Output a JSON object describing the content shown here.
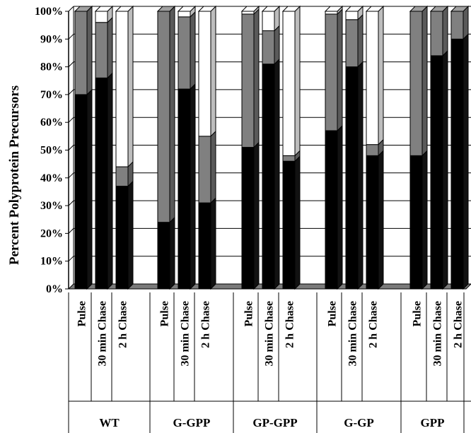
{
  "chart_data": {
    "type": "bar",
    "stacked": true,
    "three_d": true,
    "ylabel": "Percent Polyprotein Precursors",
    "xlabel": "",
    "ylim": [
      0,
      100
    ],
    "y_ticks": [
      "0%",
      "10%",
      "20%",
      "30%",
      "40%",
      "50%",
      "60%",
      "70%",
      "80%",
      "90%",
      "100%"
    ],
    "grid": true,
    "groups": [
      "WT",
      "G-GPP",
      "GP-GPP",
      "G-GP",
      "GPP"
    ],
    "categories": [
      "Pulse",
      "30 min Chase",
      "2 h Chase"
    ],
    "bars": [
      {
        "group": "WT",
        "category": "Pulse",
        "segments": [
          70,
          30,
          0
        ]
      },
      {
        "group": "WT",
        "category": "30 min Chase",
        "segments": [
          76,
          20,
          4
        ]
      },
      {
        "group": "WT",
        "category": "2 h Chase",
        "segments": [
          37,
          7,
          56
        ]
      },
      {
        "group": "G-GPP",
        "category": "Pulse",
        "segments": [
          24,
          76,
          0
        ]
      },
      {
        "group": "G-GPP",
        "category": "30 min Chase",
        "segments": [
          72,
          26,
          2
        ]
      },
      {
        "group": "G-GPP",
        "category": "2 h Chase",
        "segments": [
          31,
          24,
          45
        ]
      },
      {
        "group": "GP-GPP",
        "category": "Pulse",
        "segments": [
          51,
          48,
          1
        ]
      },
      {
        "group": "GP-GPP",
        "category": "30 min Chase",
        "segments": [
          81,
          12,
          7
        ]
      },
      {
        "group": "GP-GPP",
        "category": "2 h Chase",
        "segments": [
          46,
          2,
          52
        ]
      },
      {
        "group": "G-GP",
        "category": "Pulse",
        "segments": [
          57,
          42,
          1
        ]
      },
      {
        "group": "G-GP",
        "category": "30 min Chase",
        "segments": [
          80,
          17,
          3
        ]
      },
      {
        "group": "G-GP",
        "category": "2 h Chase",
        "segments": [
          48,
          4,
          48
        ]
      },
      {
        "group": "GPP",
        "category": "Pulse",
        "segments": [
          48,
          52,
          0
        ]
      },
      {
        "group": "GPP",
        "category": "30 min Chase",
        "segments": [
          84,
          16,
          0
        ]
      },
      {
        "group": "GPP",
        "category": "2 h Chase",
        "segments": [
          90,
          10,
          0
        ]
      }
    ],
    "colors": {
      "segment_1": "#000000",
      "segment_2": "#808080",
      "segment_3": "#ffffff",
      "floor": "#7a7a7a",
      "grid": "#000000"
    }
  }
}
